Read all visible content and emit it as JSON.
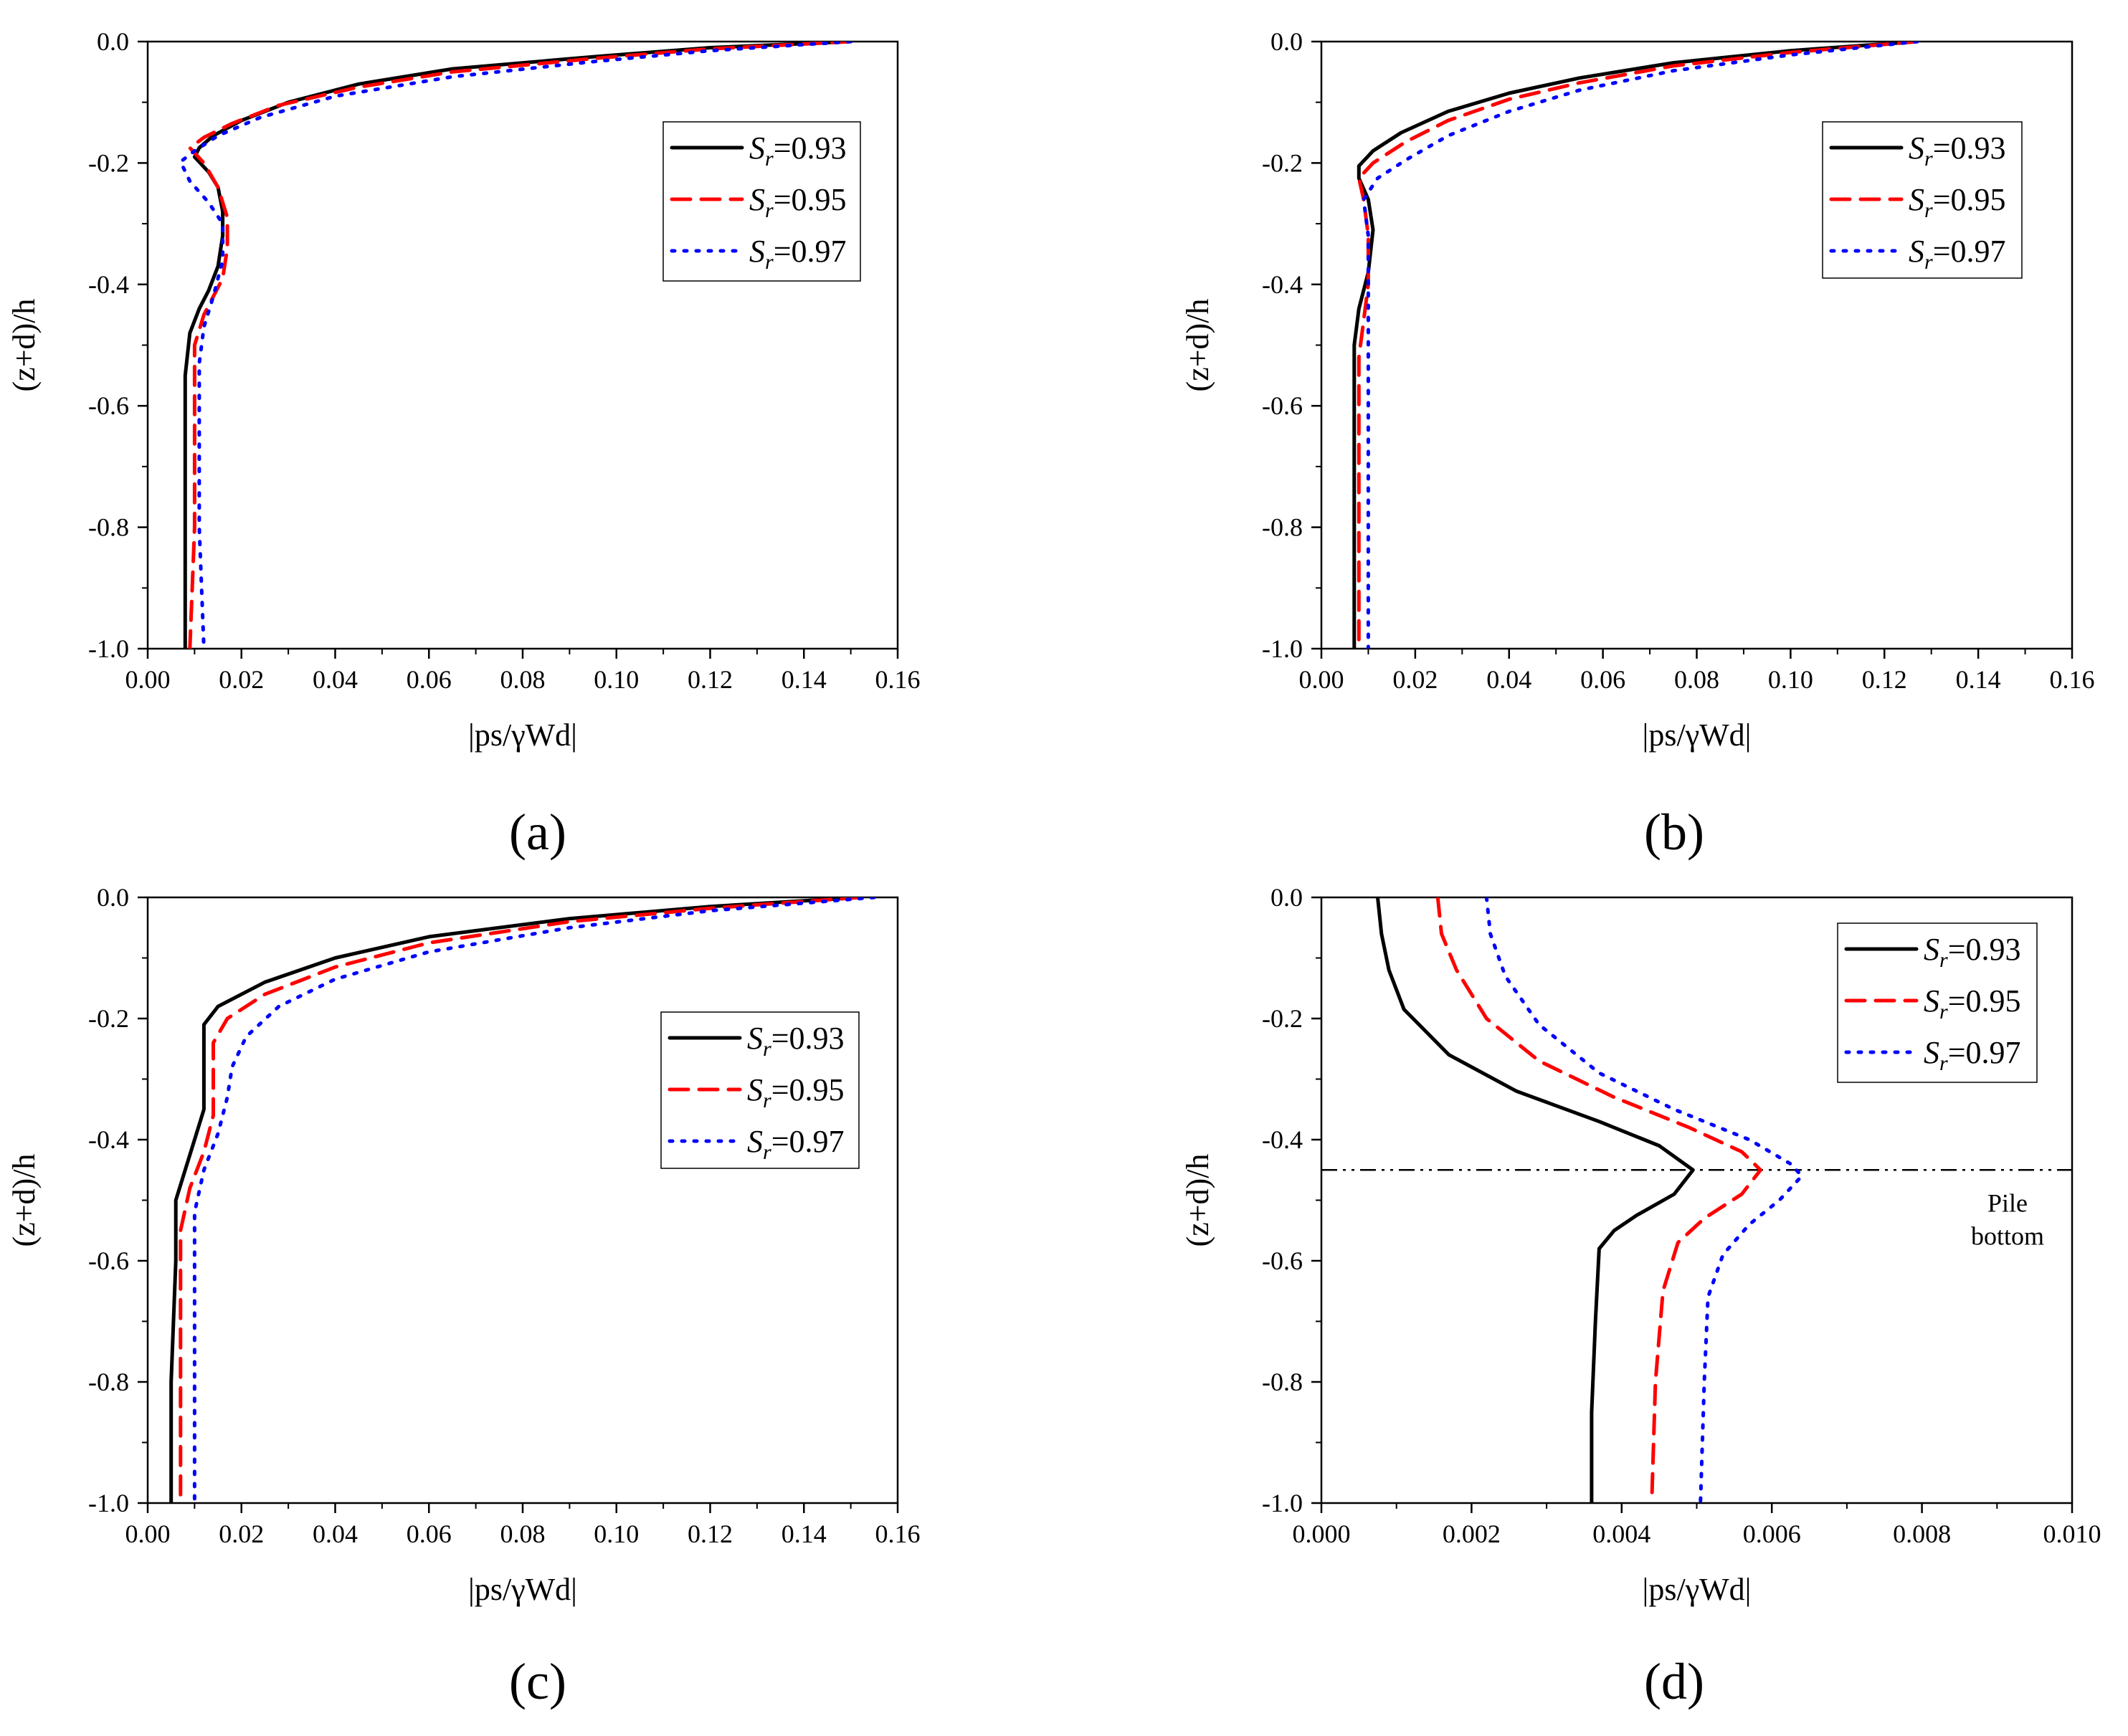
{
  "figure": {
    "description_labels": [
      "(a)",
      "(b)",
      "(c)",
      "(d)"
    ]
  },
  "chart_data": [
    {
      "type": "line",
      "panel_label": "(a)",
      "xlabel": "|ps/γWd|",
      "ylabel": "(z+d)/h",
      "xlim": [
        0.0,
        0.16
      ],
      "ylim": [
        -1.0,
        0.0
      ],
      "xticks": [
        0.0,
        0.02,
        0.04,
        0.06,
        0.08,
        0.1,
        0.12,
        0.14,
        0.16
      ],
      "xtick_labels": [
        "0.00",
        "0.02",
        "0.04",
        "0.06",
        "0.08",
        "0.10",
        "0.12",
        "0.14",
        "0.16"
      ],
      "yticks": [
        0.0,
        -0.2,
        -0.4,
        -0.6,
        -0.8,
        -1.0
      ],
      "ytick_labels": [
        "0.0",
        "-0.2",
        "-0.4",
        "-0.6",
        "-0.8",
        "-1.0"
      ],
      "legend": {
        "position": "top-right",
        "entries": [
          "Sr=0.93",
          "Sr=0.95",
          "Sr=0.97"
        ]
      },
      "series": [
        {
          "name": "Sr=0.93",
          "style": "solid",
          "color": "#000000",
          "points": [
            [
              0.15,
              0.0
            ],
            [
              0.12,
              -0.01
            ],
            [
              0.095,
              -0.025
            ],
            [
              0.065,
              -0.045
            ],
            [
              0.045,
              -0.07
            ],
            [
              0.03,
              -0.1
            ],
            [
              0.02,
              -0.13
            ],
            [
              0.014,
              -0.155
            ],
            [
              0.011,
              -0.175
            ],
            [
              0.01,
              -0.19
            ],
            [
              0.013,
              -0.215
            ],
            [
              0.015,
              -0.24
            ],
            [
              0.016,
              -0.28
            ],
            [
              0.016,
              -0.32
            ],
            [
              0.015,
              -0.37
            ],
            [
              0.013,
              -0.41
            ],
            [
              0.011,
              -0.44
            ],
            [
              0.009,
              -0.48
            ],
            [
              0.008,
              -0.55
            ],
            [
              0.008,
              -0.65
            ],
            [
              0.008,
              -0.8
            ],
            [
              0.008,
              -1.0
            ]
          ]
        },
        {
          "name": "Sr=0.95",
          "style": "dashed",
          "color": "#ff0000",
          "points": [
            [
              0.15,
              0.0
            ],
            [
              0.12,
              -0.012
            ],
            [
              0.095,
              -0.028
            ],
            [
              0.065,
              -0.05
            ],
            [
              0.045,
              -0.075
            ],
            [
              0.028,
              -0.105
            ],
            [
              0.018,
              -0.135
            ],
            [
              0.012,
              -0.158
            ],
            [
              0.009,
              -0.175
            ],
            [
              0.012,
              -0.2
            ],
            [
              0.015,
              -0.24
            ],
            [
              0.017,
              -0.29
            ],
            [
              0.017,
              -0.34
            ],
            [
              0.016,
              -0.39
            ],
            [
              0.014,
              -0.42
            ],
            [
              0.012,
              -0.45
            ],
            [
              0.01,
              -0.5
            ],
            [
              0.01,
              -0.6
            ],
            [
              0.01,
              -0.8
            ],
            [
              0.009,
              -1.0
            ]
          ]
        },
        {
          "name": "Sr=0.97",
          "style": "dotted",
          "color": "#0000ff",
          "points": [
            [
              0.15,
              0.0
            ],
            [
              0.12,
              -0.015
            ],
            [
              0.095,
              -0.033
            ],
            [
              0.065,
              -0.058
            ],
            [
              0.04,
              -0.09
            ],
            [
              0.024,
              -0.125
            ],
            [
              0.015,
              -0.155
            ],
            [
              0.01,
              -0.18
            ],
            [
              0.007,
              -0.198
            ],
            [
              0.009,
              -0.23
            ],
            [
              0.013,
              -0.265
            ],
            [
              0.016,
              -0.3
            ],
            [
              0.016,
              -0.36
            ],
            [
              0.014,
              -0.42
            ],
            [
              0.012,
              -0.47
            ],
            [
              0.011,
              -0.53
            ],
            [
              0.011,
              -0.65
            ],
            [
              0.011,
              -0.8
            ],
            [
              0.012,
              -1.0
            ]
          ]
        }
      ]
    },
    {
      "type": "line",
      "panel_label": "(b)",
      "xlabel": "|ps/γWd|",
      "ylabel": "(z+d)/h",
      "xlim": [
        0.0,
        0.16
      ],
      "ylim": [
        -1.0,
        0.0
      ],
      "xticks": [
        0.0,
        0.02,
        0.04,
        0.06,
        0.08,
        0.1,
        0.12,
        0.14,
        0.16
      ],
      "xtick_labels": [
        "0.00",
        "0.02",
        "0.04",
        "0.06",
        "0.08",
        "0.10",
        "0.12",
        "0.14",
        "0.16"
      ],
      "yticks": [
        0.0,
        -0.2,
        -0.4,
        -0.6,
        -0.8,
        -1.0
      ],
      "ytick_labels": [
        "0.0",
        "-0.2",
        "-0.4",
        "-0.6",
        "-0.8",
        "-1.0"
      ],
      "legend": {
        "position": "top-right",
        "entries": [
          "Sr=0.93",
          "Sr=0.95",
          "Sr=0.97"
        ]
      },
      "series": [
        {
          "name": "Sr=0.93",
          "style": "solid",
          "color": "#000000",
          "points": [
            [
              0.127,
              0.0
            ],
            [
              0.1,
              -0.015
            ],
            [
              0.075,
              -0.035
            ],
            [
              0.055,
              -0.06
            ],
            [
              0.04,
              -0.085
            ],
            [
              0.027,
              -0.115
            ],
            [
              0.017,
              -0.15
            ],
            [
              0.011,
              -0.18
            ],
            [
              0.008,
              -0.205
            ],
            [
              0.008,
              -0.225
            ],
            [
              0.01,
              -0.26
            ],
            [
              0.011,
              -0.31
            ],
            [
              0.01,
              -0.38
            ],
            [
              0.008,
              -0.44
            ],
            [
              0.007,
              -0.5
            ],
            [
              0.007,
              -0.6
            ],
            [
              0.007,
              -0.8
            ],
            [
              0.007,
              -1.0
            ]
          ]
        },
        {
          "name": "Sr=0.95",
          "style": "dashed",
          "color": "#ff0000",
          "points": [
            [
              0.127,
              0.0
            ],
            [
              0.1,
              -0.018
            ],
            [
              0.075,
              -0.04
            ],
            [
              0.055,
              -0.068
            ],
            [
              0.04,
              -0.095
            ],
            [
              0.027,
              -0.13
            ],
            [
              0.018,
              -0.165
            ],
            [
              0.011,
              -0.2
            ],
            [
              0.008,
              -0.225
            ],
            [
              0.009,
              -0.26
            ],
            [
              0.01,
              -0.32
            ],
            [
              0.01,
              -0.4
            ],
            [
              0.009,
              -0.46
            ],
            [
              0.008,
              -0.52
            ],
            [
              0.008,
              -0.7
            ],
            [
              0.008,
              -1.0
            ]
          ]
        },
        {
          "name": "Sr=0.97",
          "style": "dotted",
          "color": "#0000ff",
          "points": [
            [
              0.127,
              0.0
            ],
            [
              0.1,
              -0.022
            ],
            [
              0.075,
              -0.048
            ],
            [
              0.055,
              -0.08
            ],
            [
              0.04,
              -0.115
            ],
            [
              0.027,
              -0.155
            ],
            [
              0.018,
              -0.195
            ],
            [
              0.012,
              -0.225
            ],
            [
              0.009,
              -0.26
            ],
            [
              0.01,
              -0.32
            ],
            [
              0.01,
              -0.4
            ],
            [
              0.01,
              -0.48
            ],
            [
              0.01,
              -0.6
            ],
            [
              0.01,
              -0.8
            ],
            [
              0.01,
              -1.0
            ]
          ]
        }
      ]
    },
    {
      "type": "line",
      "panel_label": "(c)",
      "xlabel": "|ps/γWd|",
      "ylabel": "(z+d)/h",
      "xlim": [
        0.0,
        0.16
      ],
      "ylim": [
        -1.0,
        0.0
      ],
      "xticks": [
        0.0,
        0.02,
        0.04,
        0.06,
        0.08,
        0.1,
        0.12,
        0.14,
        0.16
      ],
      "xtick_labels": [
        "0.00",
        "0.02",
        "0.04",
        "0.06",
        "0.08",
        "0.10",
        "0.12",
        "0.14",
        "0.16"
      ],
      "yticks": [
        0.0,
        -0.2,
        -0.4,
        -0.6,
        -0.8,
        -1.0
      ],
      "ytick_labels": [
        "0.0",
        "-0.2",
        "-0.4",
        "-0.6",
        "-0.8",
        "-1.0"
      ],
      "legend": {
        "position": "right",
        "entries": [
          "Sr=0.93",
          "Sr=0.95",
          "Sr=0.97"
        ]
      },
      "series": [
        {
          "name": "Sr=0.93",
          "style": "solid",
          "color": "#000000",
          "points": [
            [
              0.152,
              0.0
            ],
            [
              0.12,
              -0.015
            ],
            [
              0.09,
              -0.035
            ],
            [
              0.06,
              -0.065
            ],
            [
              0.04,
              -0.1
            ],
            [
              0.025,
              -0.14
            ],
            [
              0.015,
              -0.18
            ],
            [
              0.012,
              -0.21
            ],
            [
              0.012,
              -0.25
            ],
            [
              0.012,
              -0.3
            ],
            [
              0.012,
              -0.35
            ],
            [
              0.01,
              -0.4
            ],
            [
              0.008,
              -0.45
            ],
            [
              0.006,
              -0.5
            ],
            [
              0.006,
              -0.6
            ],
            [
              0.005,
              -0.8
            ],
            [
              0.005,
              -1.0
            ]
          ]
        },
        {
          "name": "Sr=0.95",
          "style": "dashed",
          "color": "#ff0000",
          "points": [
            [
              0.152,
              0.0
            ],
            [
              0.12,
              -0.018
            ],
            [
              0.09,
              -0.04
            ],
            [
              0.06,
              -0.075
            ],
            [
              0.04,
              -0.115
            ],
            [
              0.025,
              -0.16
            ],
            [
              0.017,
              -0.2
            ],
            [
              0.014,
              -0.24
            ],
            [
              0.014,
              -0.3
            ],
            [
              0.014,
              -0.36
            ],
            [
              0.012,
              -0.42
            ],
            [
              0.009,
              -0.48
            ],
            [
              0.007,
              -0.55
            ],
            [
              0.007,
              -0.7
            ],
            [
              0.007,
              -1.0
            ]
          ]
        },
        {
          "name": "Sr=0.97",
          "style": "dotted",
          "color": "#0000ff",
          "points": [
            [
              0.155,
              0.0
            ],
            [
              0.12,
              -0.022
            ],
            [
              0.09,
              -0.05
            ],
            [
              0.06,
              -0.09
            ],
            [
              0.04,
              -0.135
            ],
            [
              0.028,
              -0.18
            ],
            [
              0.021,
              -0.23
            ],
            [
              0.018,
              -0.28
            ],
            [
              0.017,
              -0.33
            ],
            [
              0.015,
              -0.39
            ],
            [
              0.012,
              -0.45
            ],
            [
              0.01,
              -0.52
            ],
            [
              0.01,
              -0.65
            ],
            [
              0.01,
              -1.0
            ]
          ]
        }
      ]
    },
    {
      "type": "line",
      "panel_label": "(d)",
      "xlabel": "|ps/γWd|",
      "ylabel": "(z+d)/h",
      "xlim": [
        0.0,
        0.01
      ],
      "ylim": [
        -1.0,
        0.0
      ],
      "xticks": [
        0.0,
        0.002,
        0.004,
        0.006,
        0.008,
        0.01
      ],
      "xtick_labels": [
        "0.000",
        "0.002",
        "0.004",
        "0.006",
        "0.008",
        "0.010"
      ],
      "yticks": [
        0.0,
        -0.2,
        -0.4,
        -0.6,
        -0.8,
        -1.0
      ],
      "ytick_labels": [
        "0.0",
        "-0.2",
        "-0.4",
        "-0.6",
        "-0.8",
        "-1.0"
      ],
      "legend": {
        "position": "top-right",
        "entries": [
          "Sr=0.93",
          "Sr=0.95",
          "Sr=0.97"
        ]
      },
      "reference_line": {
        "y": -0.45,
        "style": "dash-dot",
        "label_line1": "Pile",
        "label_line2": "bottom"
      },
      "series": [
        {
          "name": "Sr=0.93",
          "style": "solid",
          "color": "#000000",
          "points": [
            [
              0.00075,
              0.0
            ],
            [
              0.0008,
              -0.06
            ],
            [
              0.0009,
              -0.12
            ],
            [
              0.0011,
              -0.185
            ],
            [
              0.0017,
              -0.26
            ],
            [
              0.0026,
              -0.32
            ],
            [
              0.0037,
              -0.37
            ],
            [
              0.0045,
              -0.41
            ],
            [
              0.00495,
              -0.45
            ],
            [
              0.0047,
              -0.49
            ],
            [
              0.0042,
              -0.525
            ],
            [
              0.0039,
              -0.55
            ],
            [
              0.0037,
              -0.58
            ],
            [
              0.00365,
              -0.7
            ],
            [
              0.0036,
              -0.85
            ],
            [
              0.0036,
              -1.0
            ]
          ]
        },
        {
          "name": "Sr=0.95",
          "style": "dashed",
          "color": "#ff0000",
          "points": [
            [
              0.00155,
              0.0
            ],
            [
              0.0016,
              -0.06
            ],
            [
              0.0018,
              -0.12
            ],
            [
              0.0022,
              -0.2
            ],
            [
              0.0029,
              -0.27
            ],
            [
              0.0039,
              -0.33
            ],
            [
              0.0049,
              -0.38
            ],
            [
              0.0056,
              -0.42
            ],
            [
              0.00585,
              -0.45
            ],
            [
              0.0056,
              -0.49
            ],
            [
              0.0051,
              -0.53
            ],
            [
              0.00475,
              -0.57
            ],
            [
              0.00455,
              -0.65
            ],
            [
              0.00445,
              -0.8
            ],
            [
              0.0044,
              -1.0
            ]
          ]
        },
        {
          "name": "Sr=0.97",
          "style": "dotted",
          "color": "#0000ff",
          "points": [
            [
              0.0022,
              0.0
            ],
            [
              0.00225,
              -0.06
            ],
            [
              0.00245,
              -0.13
            ],
            [
              0.0029,
              -0.21
            ],
            [
              0.0037,
              -0.29
            ],
            [
              0.0047,
              -0.35
            ],
            [
              0.0057,
              -0.4
            ],
            [
              0.00625,
              -0.44
            ],
            [
              0.0064,
              -0.46
            ],
            [
              0.0061,
              -0.5
            ],
            [
              0.0057,
              -0.54
            ],
            [
              0.00535,
              -0.59
            ],
            [
              0.00515,
              -0.66
            ],
            [
              0.0051,
              -0.8
            ],
            [
              0.00505,
              -1.0
            ]
          ]
        }
      ]
    }
  ]
}
